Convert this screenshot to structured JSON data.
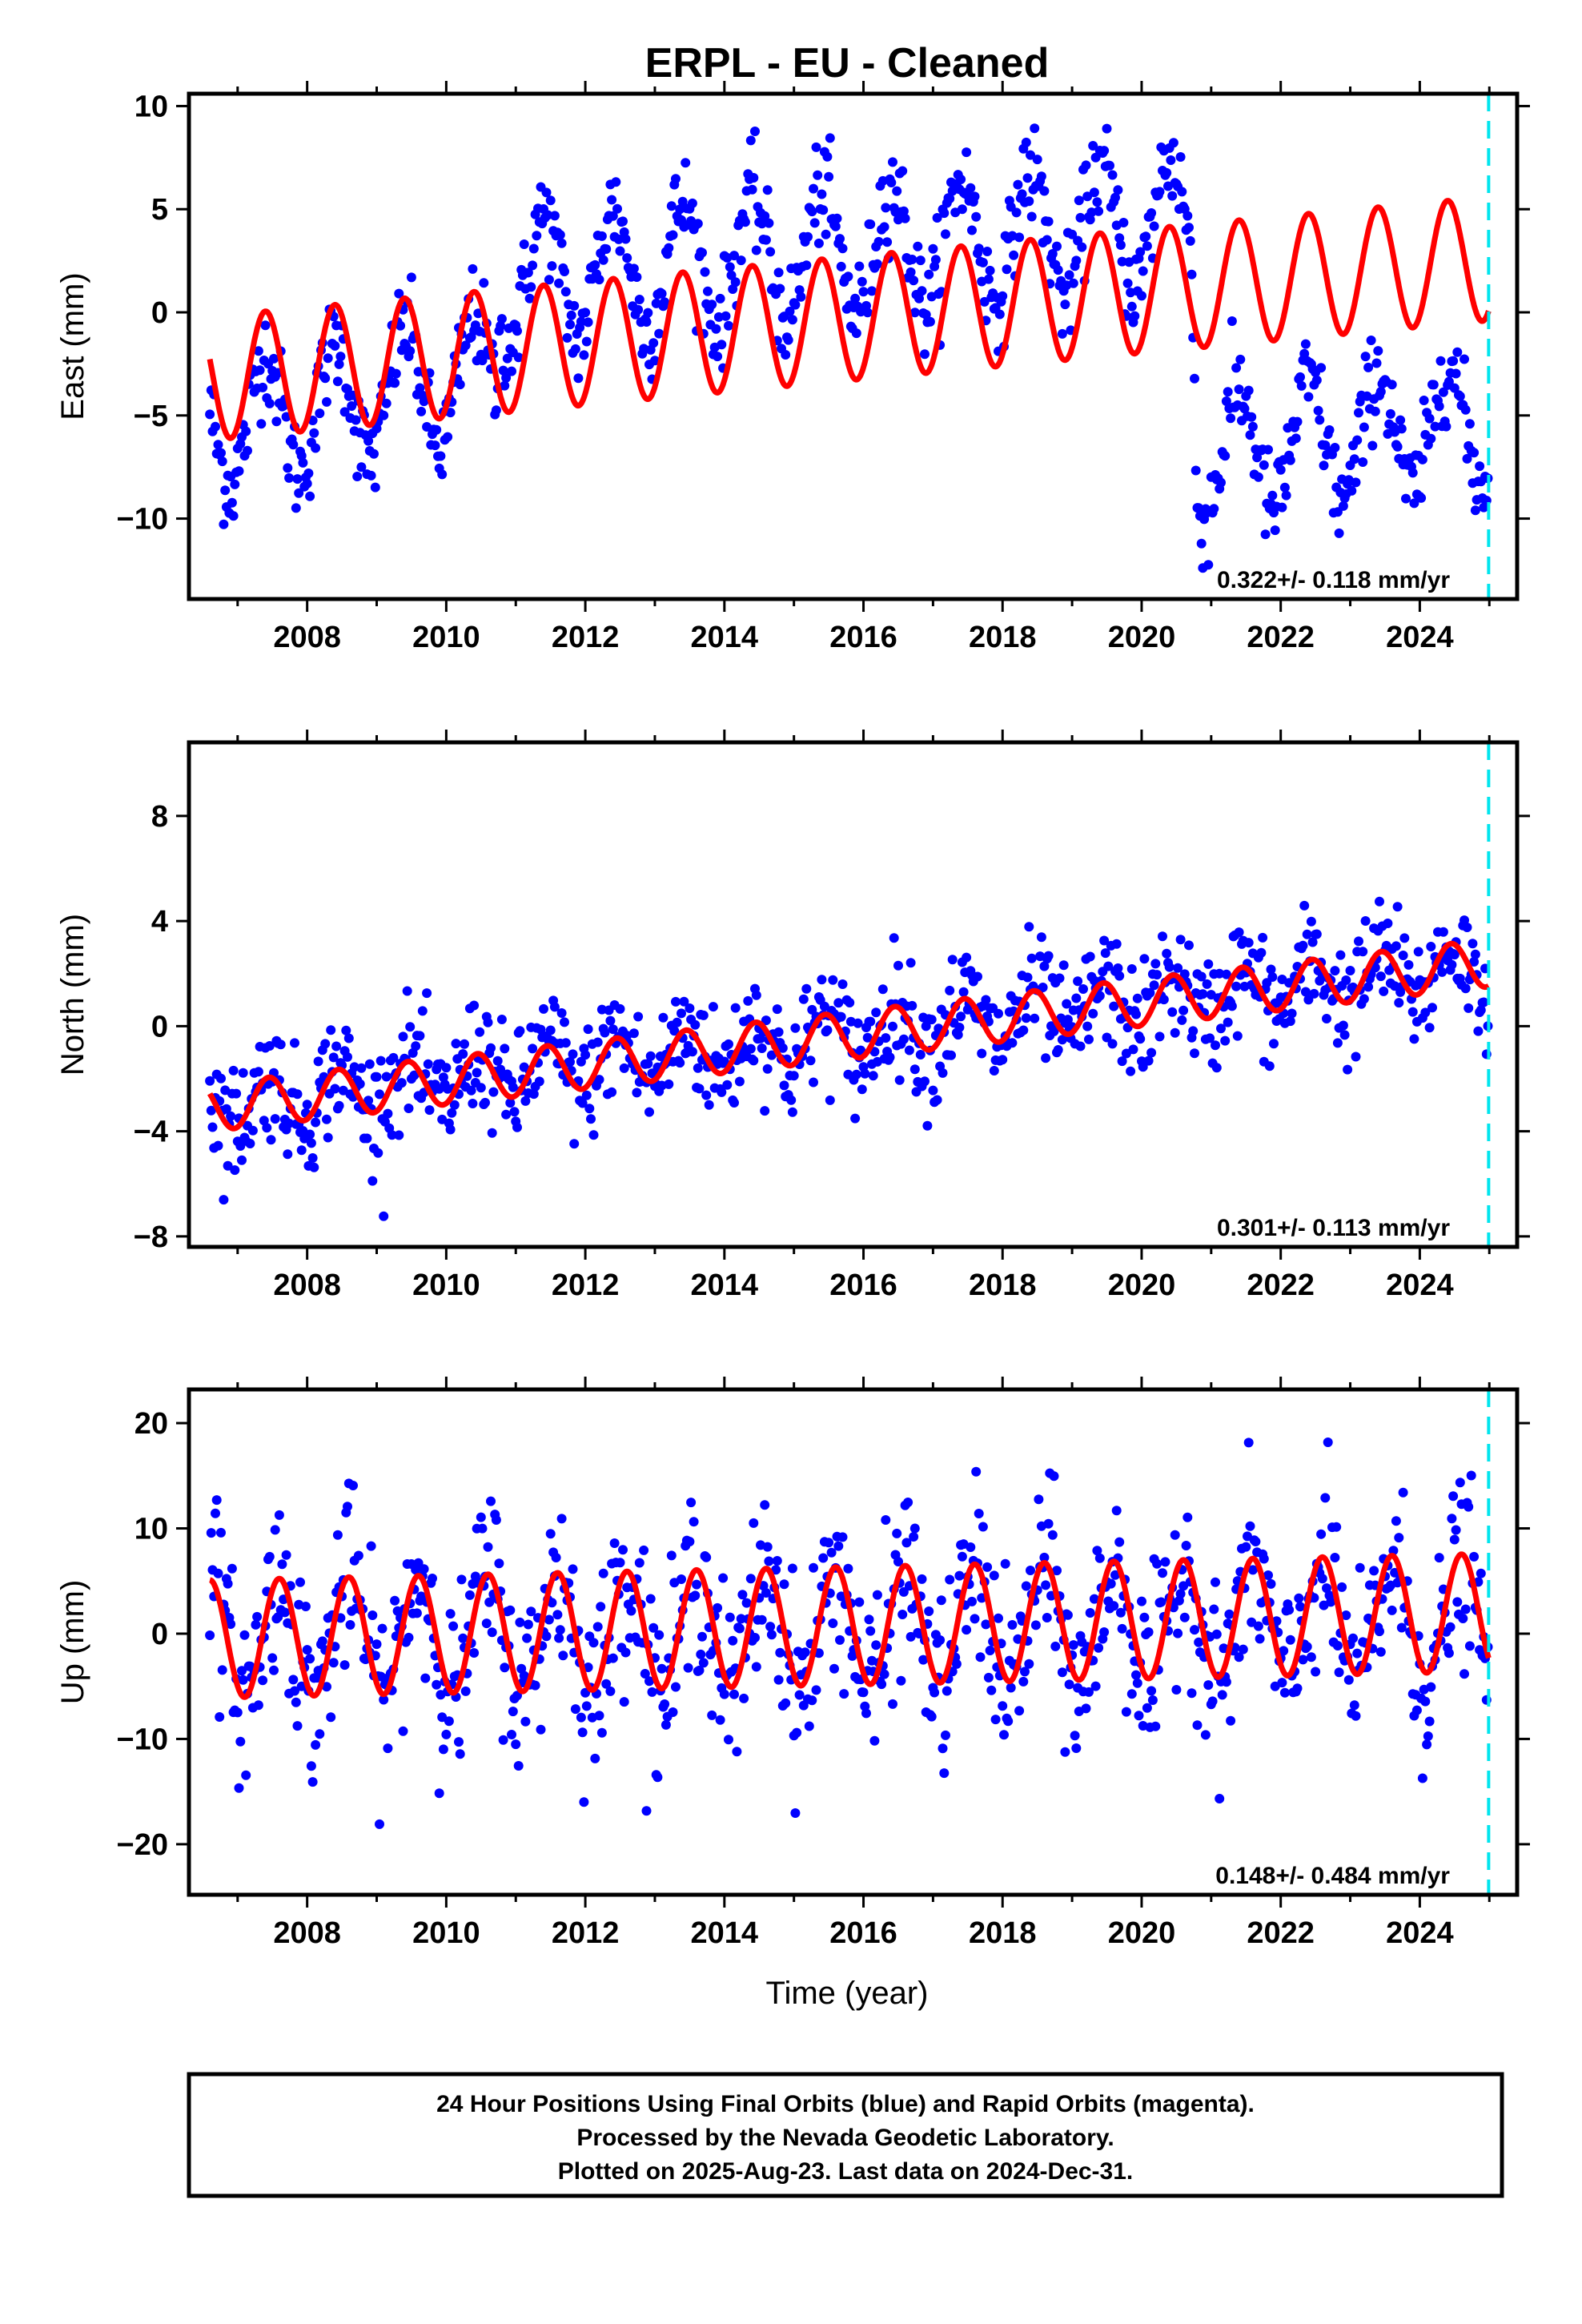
{
  "title": "ERPL  - EU - Cleaned",
  "xlabel": "Time (year)",
  "colors": {
    "points": "#0000ff",
    "model": "#ff0000",
    "last_data_line": "#00e5ee",
    "frame": "#000000"
  },
  "footer": {
    "line1": "24 Hour Positions Using Final Orbits (blue) and Rapid Orbits (magenta).",
    "line2": "Processed by the Nevada Geodetic Laboratory.",
    "line3": "Plotted on 2025-Aug-23. Last data on 2024-Dec-31."
  },
  "chart_data": [
    {
      "type": "scatter",
      "panel": "east",
      "ylabel": "East (mm)",
      "rate_label": "0.322+/- 0.118 mm/yr",
      "xlim": [
        2006.3,
        2025.4
      ],
      "ylim": [
        -13.9,
        10.6
      ],
      "xticks": [
        2008,
        2010,
        2012,
        2014,
        2016,
        2018,
        2020,
        2022,
        2024
      ],
      "xtick_labels": [
        "2008",
        "2010",
        "2012",
        "2014",
        "2016",
        "2018",
        "2020",
        "2022",
        "2024"
      ],
      "yticks": [
        -10,
        -5,
        0,
        5,
        10
      ],
      "ytick_labels": [
        "−10",
        "−5",
        "0",
        "5",
        "10"
      ],
      "last_data": 2024.99,
      "series": [
        {
          "name": "Final Orbits",
          "kind": "points",
          "start": 2006.6,
          "end": 2024.99,
          "step": 0.02,
          "approx_trend": [
            [
              2006.6,
              -5.5
            ],
            [
              2010.7,
              -3.0
            ],
            [
              2010.8,
              1.5
            ],
            [
              2020.7,
              4.5
            ],
            [
              2020.8,
              -7.0
            ],
            [
              2024.99,
              -5.2
            ]
          ],
          "seasonal_amplitude": 3.0,
          "scatter": 1.2
        },
        {
          "name": "Model",
          "kind": "line",
          "trend": [
            [
              2006.6,
              -3.2
            ],
            [
              2024.99,
              2.6
            ]
          ],
          "seasonal_amplitude": 3.0,
          "phase_peak": 0.4
        }
      ]
    },
    {
      "type": "scatter",
      "panel": "north",
      "ylabel": "North (mm)",
      "rate_label": "0.301+/- 0.113 mm/yr",
      "xlim": [
        2006.3,
        2025.4
      ],
      "ylim": [
        -8.4,
        10.8
      ],
      "xticks": [
        2008,
        2010,
        2012,
        2014,
        2016,
        2018,
        2020,
        2022,
        2024
      ],
      "xtick_labels": [
        "2008",
        "2010",
        "2012",
        "2014",
        "2016",
        "2018",
        "2020",
        "2022",
        "2024"
      ],
      "yticks": [
        -8,
        -4,
        0,
        4,
        8
      ],
      "ytick_labels": [
        "−8",
        "−4",
        "0",
        "4",
        "8"
      ],
      "last_data": 2024.99,
      "series": [
        {
          "name": "Final Orbits",
          "kind": "points",
          "start": 2006.6,
          "end": 2024.99,
          "step": 0.02,
          "approx_trend": [
            [
              2006.6,
              -3.0
            ],
            [
              2024.99,
              2.3
            ]
          ],
          "seasonal_amplitude": 0.9,
          "scatter": 1.1
        },
        {
          "name": "Model",
          "kind": "line",
          "trend": [
            [
              2006.6,
              -3.1
            ],
            [
              2024.99,
              2.4
            ]
          ],
          "seasonal_amplitude": 0.9,
          "phase_peak": 0.45
        }
      ]
    },
    {
      "type": "scatter",
      "panel": "up",
      "ylabel": "Up (mm)",
      "rate_label": "0.148+/- 0.484 mm/yr",
      "xlim": [
        2006.3,
        2025.4
      ],
      "ylim": [
        -24.8,
        23.2
      ],
      "xticks": [
        2008,
        2010,
        2012,
        2014,
        2016,
        2018,
        2020,
        2022,
        2024
      ],
      "xtick_labels": [
        "2008",
        "2010",
        "2012",
        "2014",
        "2016",
        "2018",
        "2020",
        "2022",
        "2024"
      ],
      "yticks": [
        -20,
        -10,
        0,
        10,
        20
      ],
      "ytick_labels": [
        "−20",
        "−10",
        "0",
        "10",
        "20"
      ],
      "last_data": 2024.99,
      "series": [
        {
          "name": "Final Orbits",
          "kind": "points",
          "start": 2006.6,
          "end": 2024.99,
          "step": 0.02,
          "approx_trend": [
            [
              2006.6,
              -0.5
            ],
            [
              2024.99,
              1.0
            ]
          ],
          "seasonal_amplitude": 5.6,
          "scatter": 4.2
        },
        {
          "name": "Model",
          "kind": "line",
          "trend": [
            [
              2006.6,
              -0.5
            ],
            [
              2024.99,
              2.0
            ]
          ],
          "seasonal_amplitude": 5.6,
          "phase_peak": 0.6
        }
      ]
    }
  ]
}
